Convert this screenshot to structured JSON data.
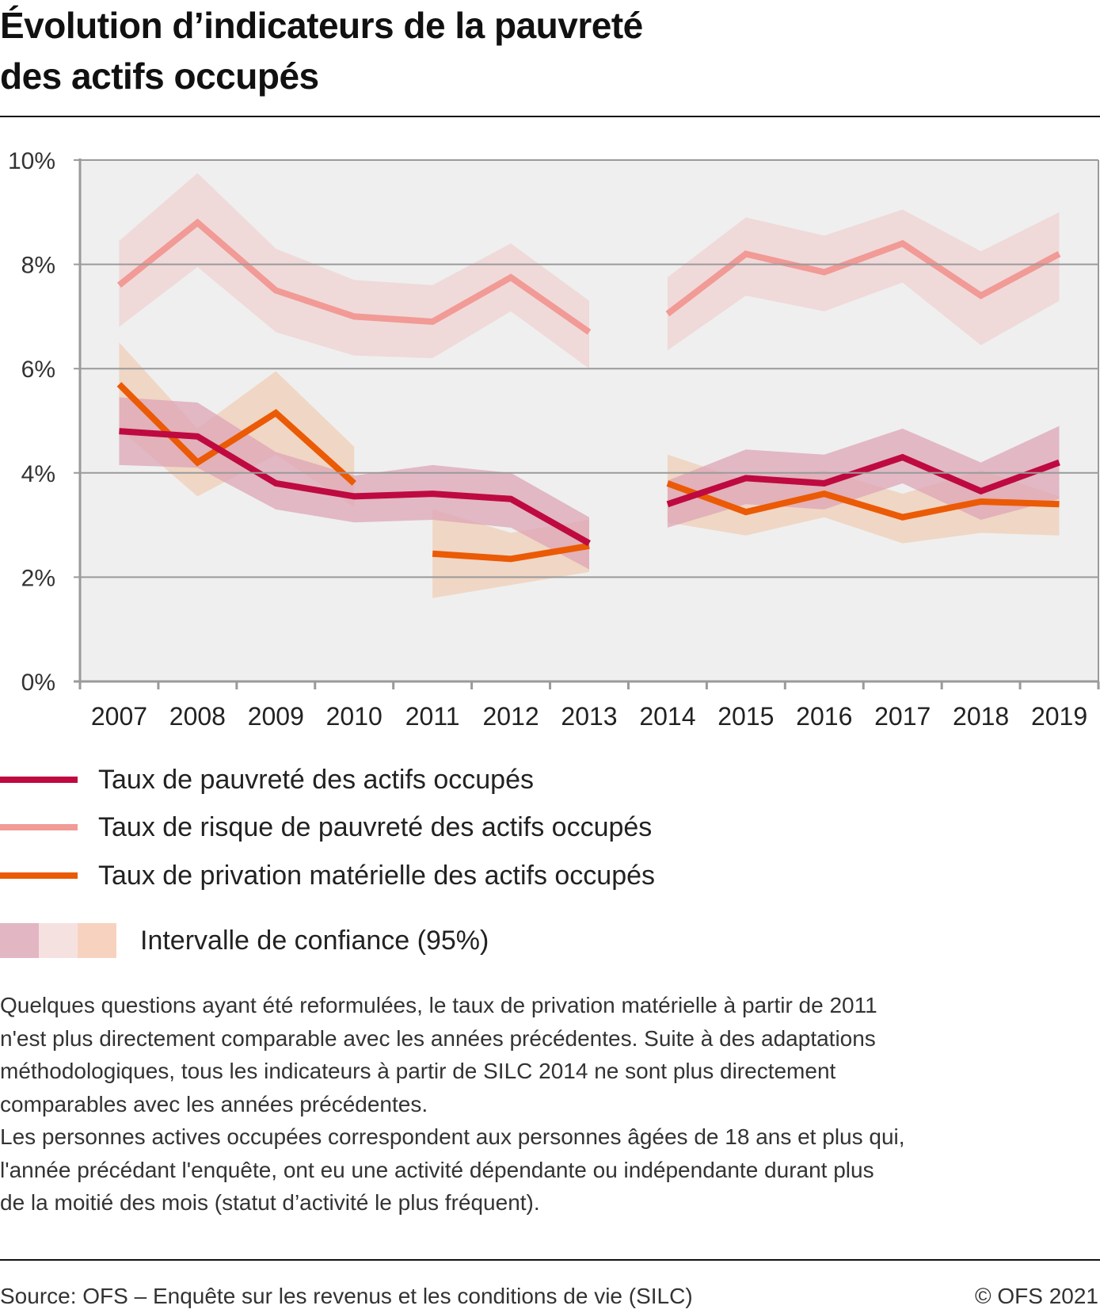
{
  "title_lines": [
    "Évolution d’indicateurs de la pauvreté",
    "des actifs occupés"
  ],
  "legend": {
    "items": [
      {
        "label": "Taux de pauvreté des actifs occupés",
        "color": "#be0a40"
      },
      {
        "label": "Taux de risque de pauvreté des actifs occupés",
        "color": "#f19a96"
      },
      {
        "label": "Taux de privation matérielle des actifs occupés",
        "color": "#eb5a05"
      }
    ],
    "ci_label": "Intervalle de confiance (95%)",
    "ci_colors": [
      "#e3b6c4",
      "#f6e1e1",
      "#f7d3bf"
    ]
  },
  "notes": [
    "Quelques questions ayant été reformulées, le taux de privation matérielle à partir de 2011",
    "n'est plus directement comparable avec les années précédentes. Suite à des adaptations",
    "méthodologiques, tous les indicateurs à partir de SILC 2014 ne sont plus directement",
    "comparables avec les années précédentes.",
    "Les personnes actives occupées correspondent aux personnes âgées de 18 ans et plus qui,",
    "l'année précédant l'enquête, ont eu une activité dépendante ou indépendante durant plus",
    "de la moitié des mois (statut d’activité le plus fréquent)."
  ],
  "footer": {
    "source": "Source: OFS – Enquête sur les revenus et les conditions de vie (SILC)",
    "copyright": "© OFS 2021"
  },
  "chart_data": {
    "type": "line",
    "title": "Évolution d’indicateurs de la pauvreté des actifs occupés",
    "xlabel": "",
    "ylabel": "",
    "categories": [
      "2007",
      "2008",
      "2009",
      "2010",
      "2011",
      "2012",
      "2013",
      "2014",
      "2015",
      "2016",
      "2017",
      "2018",
      "2019"
    ],
    "ylim": [
      0,
      10
    ],
    "yticks": [
      0,
      2,
      4,
      6,
      8,
      10
    ],
    "ytick_labels": [
      "0%",
      "2%",
      "4%",
      "6%",
      "8%",
      "10%"
    ],
    "grid": true,
    "legend_position": "bottom",
    "series": [
      {
        "name": "Taux de risque de pauvreté des actifs occupés",
        "color": "#f19a96",
        "band_color": "#f0d9d9",
        "values": [
          7.6,
          8.8,
          7.5,
          7.0,
          6.9,
          7.75,
          6.7,
          7.05,
          8.2,
          7.85,
          8.4,
          7.4,
          8.2
        ],
        "ci_low": [
          6.8,
          7.95,
          6.7,
          6.25,
          6.2,
          7.1,
          6.0,
          6.35,
          7.4,
          7.1,
          7.65,
          6.45,
          7.3
        ],
        "ci_high": [
          8.45,
          9.75,
          8.3,
          7.7,
          7.6,
          8.4,
          7.3,
          7.75,
          8.9,
          8.55,
          9.05,
          8.25,
          9.0
        ],
        "segments": [
          [
            0,
            6
          ],
          [
            7,
            12
          ]
        ]
      },
      {
        "name": "Taux de privation matérielle des actifs occupés",
        "color": "#eb5a05",
        "band_color": "#f0ccb3",
        "values": [
          5.7,
          4.2,
          5.15,
          3.8,
          2.45,
          2.35,
          2.6,
          3.8,
          3.25,
          3.6,
          3.15,
          3.45,
          3.4
        ],
        "ci_low": [
          4.85,
          3.55,
          4.35,
          3.35,
          1.6,
          1.85,
          2.1,
          3.05,
          2.8,
          3.15,
          2.65,
          2.85,
          2.8
        ],
        "ci_high": [
          6.5,
          4.85,
          5.95,
          4.5,
          3.3,
          2.85,
          3.1,
          4.35,
          3.85,
          4.05,
          3.6,
          4.05,
          3.55
        ],
        "segments": [
          [
            0,
            3
          ],
          [
            4,
            6
          ],
          [
            7,
            12
          ]
        ]
      },
      {
        "name": "Taux de pauvreté des actifs occupés",
        "color": "#be0a40",
        "band_color": "#dca2b4",
        "values": [
          4.8,
          4.7,
          3.8,
          3.55,
          3.6,
          3.5,
          2.65,
          3.4,
          3.9,
          3.8,
          4.3,
          3.65,
          4.2
        ],
        "ci_low": [
          4.15,
          4.1,
          3.3,
          3.05,
          3.1,
          2.95,
          2.15,
          2.95,
          3.4,
          3.3,
          3.8,
          3.1,
          3.5
        ],
        "ci_high": [
          5.45,
          5.35,
          4.4,
          3.95,
          4.15,
          4.0,
          3.15,
          3.85,
          4.45,
          4.35,
          4.85,
          4.2,
          4.9
        ],
        "segments": [
          [
            0,
            6
          ],
          [
            7,
            12
          ]
        ]
      }
    ]
  }
}
